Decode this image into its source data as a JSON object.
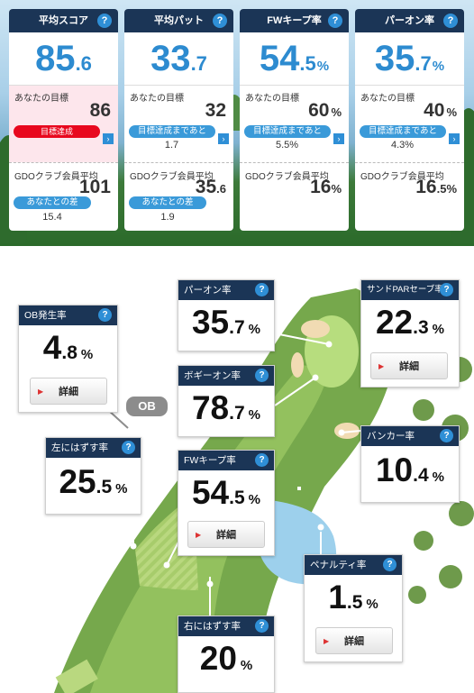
{
  "summary_cards": [
    {
      "title": "平均スコア",
      "value_int": "85",
      "value_dec": ".6",
      "unit": "",
      "goal_label": "あなたの目標",
      "goal_value": "86",
      "goal_unit": "",
      "goal_status": "目標達成",
      "avg_label": "GDOクラブ会員平均",
      "avg_int": "101",
      "avg_dec": "",
      "avg_unit": "",
      "diff_label": "あなたとの差",
      "diff_value": "15.4"
    },
    {
      "title": "平均パット",
      "value_int": "33",
      "value_dec": ".7",
      "unit": "",
      "goal_label": "あなたの目標",
      "goal_value": "32",
      "goal_unit": "",
      "remain_label": "目標達成まであと",
      "remain_value": "1.7",
      "avg_label": "GDOクラブ会員平均",
      "avg_int": "35",
      "avg_dec": ".6",
      "avg_unit": "",
      "diff_label": "あなたとの差",
      "diff_value": "1.9"
    },
    {
      "title": "FWキープ率",
      "value_int": "54",
      "value_dec": ".5",
      "unit": "%",
      "goal_label": "あなたの目標",
      "goal_value": "60",
      "goal_unit": "%",
      "remain_label": "目標達成まであと",
      "remain_value": "5.5%",
      "avg_label": "GDOクラブ会員平均",
      "avg_int": "16",
      "avg_dec": "",
      "avg_unit": "%"
    },
    {
      "title": "パーオン率",
      "value_int": "35",
      "value_dec": ".7",
      "unit": "%",
      "goal_label": "あなたの目標",
      "goal_value": "40",
      "goal_unit": "%",
      "remain_label": "目標達成まであと",
      "remain_value": "4.3%",
      "avg_label": "GDOクラブ会員平均",
      "avg_int": "16",
      "avg_dec": ".5",
      "avg_unit": "%"
    }
  ],
  "course_stats": {
    "ob": {
      "title": "OB発生率",
      "int": "4",
      "dec": ".8",
      "unit": "%",
      "button": "詳細"
    },
    "ob_badge": "OB",
    "left_miss": {
      "title": "左にはずす率",
      "int": "25",
      "dec": ".5",
      "unit": "%"
    },
    "par_on": {
      "title": "パーオン率",
      "int": "35",
      "dec": ".7",
      "unit": "%"
    },
    "bogey_on": {
      "title": "ボギーオン率",
      "int": "78",
      "dec": ".7",
      "unit": "%"
    },
    "fw_keep": {
      "title": "FWキープ率",
      "int": "54",
      "dec": ".5",
      "unit": "%",
      "button": "詳細"
    },
    "sand_save": {
      "title": "サンドPARセーブ率",
      "int": "22",
      "dec": ".3",
      "unit": "%",
      "button": "詳細"
    },
    "bunker": {
      "title": "バンカー率",
      "int": "10",
      "dec": ".4",
      "unit": "%"
    },
    "penalty": {
      "title": "ペナルティ率",
      "int": "1",
      "dec": ".5",
      "unit": "%",
      "button": "詳細"
    },
    "right_miss": {
      "title": "右にはずす率",
      "int": "20",
      "dec": "",
      "unit": "%"
    }
  },
  "icons": {
    "help": "question-icon",
    "detail": "triangle-right-icon",
    "next": "chevron-right-icon"
  },
  "colors": {
    "header": "#1b3556",
    "accent_blue": "#2d8bd0",
    "achieved_red": "#e8081e",
    "pill_blue": "#3a9ad9"
  }
}
